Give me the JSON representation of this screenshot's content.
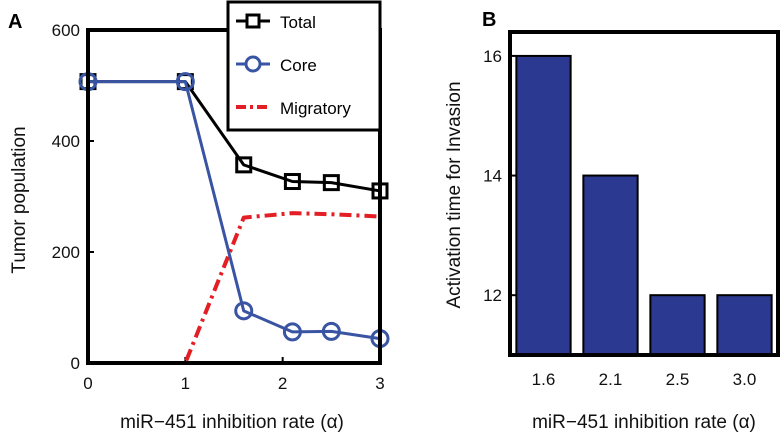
{
  "chart_data": [
    {
      "panel": "A",
      "type": "line",
      "xlabel": "miR−451 inhibition rate (α)",
      "ylabel": "Tumor population",
      "xlim": [
        0,
        3
      ],
      "ylim": [
        0,
        600
      ],
      "xticks": [
        "0",
        "1",
        "2",
        "3"
      ],
      "yticks": [
        "0",
        "200",
        "400",
        "600"
      ],
      "legend_position": "top-right",
      "series": [
        {
          "name": "Total",
          "color": "#000000",
          "marker": "square",
          "style": "solid",
          "x": [
            0,
            1,
            1.6,
            2.1,
            2.5,
            3.0
          ],
          "y": [
            507,
            507,
            357,
            327,
            325,
            310
          ]
        },
        {
          "name": "Core",
          "color": "#3a54a4",
          "marker": "circle",
          "style": "solid",
          "x": [
            0,
            1,
            1.6,
            2.1,
            2.5,
            3.0
          ],
          "y": [
            507,
            507,
            94,
            56,
            57,
            44
          ]
        },
        {
          "name": "Migratory",
          "color": "#e31e24",
          "marker": "none",
          "style": "dashdot",
          "x": [
            0,
            1,
            1.6,
            2.1,
            2.5,
            3.0
          ],
          "y": [
            0,
            0,
            262,
            270,
            268,
            264
          ]
        }
      ]
    },
    {
      "panel": "B",
      "type": "bar",
      "xlabel": "miR−451 inhibition rate (α)",
      "ylabel": "Activation time for Invasion",
      "categories": [
        "1.6",
        "2.1",
        "2.5",
        "3.0"
      ],
      "values": [
        16,
        14,
        12,
        12
      ],
      "ylim": [
        11,
        16.4
      ],
      "yticks": [
        "12",
        "14",
        "16"
      ],
      "color": "#2b3990"
    }
  ]
}
